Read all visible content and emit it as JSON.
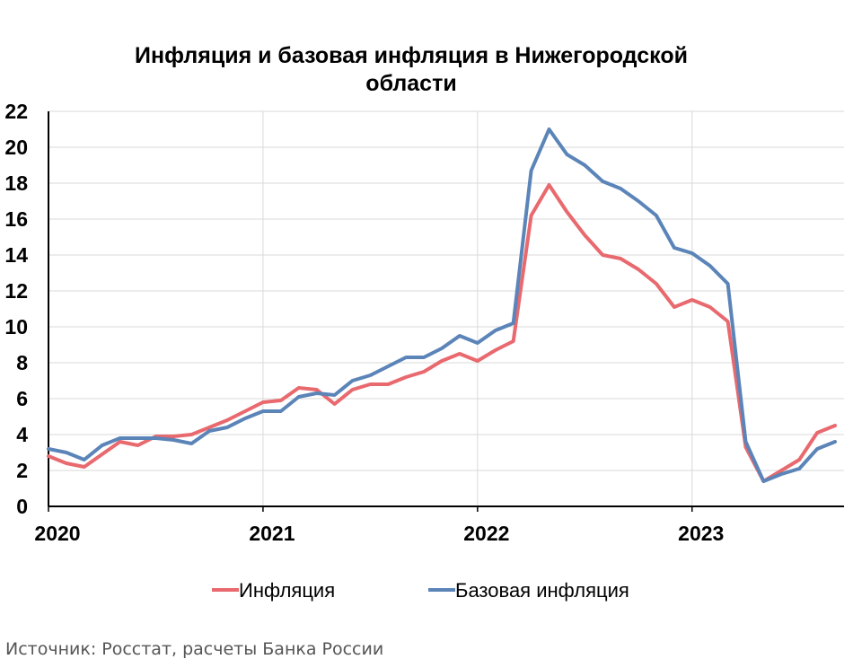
{
  "chart_data": {
    "type": "line",
    "title_lines": [
      "Инфляция и базовая инфляция в Нижегородской",
      "области"
    ],
    "xlabel": "",
    "ylabel": "",
    "ylim": [
      0,
      22
    ],
    "yticks": [
      0,
      2,
      4,
      6,
      8,
      10,
      12,
      14,
      16,
      18,
      20,
      22
    ],
    "xticks": [
      {
        "label": "2020",
        "x": 0
      },
      {
        "label": "2021",
        "x": 12
      },
      {
        "label": "2022",
        "x": 24
      },
      {
        "label": "2023",
        "x": 36
      }
    ],
    "xlim": [
      0,
      44.5
    ],
    "grid": true,
    "legend_position": "bottom",
    "series": [
      {
        "name": "Инфляция",
        "color": "#e8696e",
        "x": [
          0,
          1,
          2,
          3,
          4,
          5,
          6,
          7,
          8,
          9,
          10,
          11,
          12,
          13,
          14,
          15,
          16,
          17,
          18,
          19,
          20,
          21,
          22,
          23,
          24,
          25,
          26,
          27,
          28,
          29,
          30,
          31,
          32,
          33,
          34,
          35,
          36,
          37,
          38,
          39,
          40,
          41,
          42,
          43,
          44
        ],
        "values": [
          2.8,
          2.4,
          2.2,
          2.9,
          3.6,
          3.4,
          3.9,
          3.9,
          4.0,
          4.4,
          4.8,
          5.3,
          5.8,
          5.9,
          6.6,
          6.5,
          5.7,
          6.5,
          6.8,
          6.8,
          7.2,
          7.5,
          8.1,
          8.5,
          8.1,
          8.7,
          9.2,
          16.2,
          17.9,
          16.4,
          15.1,
          14.0,
          13.8,
          13.2,
          12.4,
          11.1,
          11.5,
          11.1,
          10.3,
          3.3,
          1.4,
          2.0,
          2.6,
          4.1,
          4.5
        ]
      },
      {
        "name": "Базовая инфляция",
        "color": "#5b84b8",
        "x": [
          0,
          1,
          2,
          3,
          4,
          5,
          6,
          7,
          8,
          9,
          10,
          11,
          12,
          13,
          14,
          15,
          16,
          17,
          18,
          19,
          20,
          21,
          22,
          23,
          24,
          25,
          26,
          27,
          28,
          29,
          30,
          31,
          32,
          33,
          34,
          35,
          36,
          37,
          38,
          39,
          40,
          41,
          42,
          43,
          44
        ],
        "values": [
          3.2,
          3.0,
          2.6,
          3.4,
          3.8,
          3.8,
          3.8,
          3.7,
          3.5,
          4.2,
          4.4,
          4.9,
          5.3,
          5.3,
          6.1,
          6.3,
          6.2,
          7.0,
          7.3,
          7.8,
          8.3,
          8.3,
          8.8,
          9.5,
          9.1,
          9.8,
          10.2,
          18.7,
          21.0,
          19.6,
          19.0,
          18.1,
          17.7,
          17.0,
          16.2,
          14.4,
          14.1,
          13.4,
          12.4,
          3.6,
          1.4,
          1.8,
          2.1,
          3.2,
          3.6
        ]
      }
    ]
  },
  "footer": {
    "source": "Источник: Росстат, расчеты Банка России"
  }
}
